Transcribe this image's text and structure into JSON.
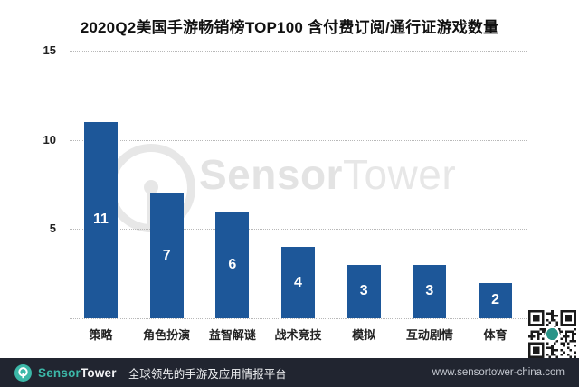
{
  "chart_data": {
    "type": "bar",
    "title": "2020Q2美国手游畅销榜TOP100 含付费订阅/通行证游戏数量",
    "categories": [
      "策略",
      "角色扮演",
      "益智解谜",
      "战术竞技",
      "模拟",
      "互动剧情",
      "体育"
    ],
    "values": [
      11,
      7,
      6,
      4,
      3,
      3,
      2
    ],
    "xlabel": "",
    "ylabel": "",
    "ylim": [
      0,
      15
    ],
    "yticks": [
      5,
      10,
      15
    ],
    "grid": "horizontal-dotted",
    "legend": "none",
    "bar_color": "#1d5799",
    "value_label_color": "#ffffff"
  },
  "watermark": {
    "brand_bold": "Sensor",
    "brand_light": "Tower"
  },
  "footer": {
    "brand_bold": "Sensor",
    "brand_light": "Tower",
    "tagline": "全球领先的手游及应用情报平台",
    "url": "www.sensortower-china.com"
  },
  "colors": {
    "bar": "#1d5799",
    "footer_bg": "#212530",
    "brand_teal": "#3cb8a8",
    "gridline": "#b8b8b8",
    "watermark": "#e5e5e5",
    "qr_dark": "#1a1a1a",
    "qr_center_teal": "#2a9488"
  }
}
